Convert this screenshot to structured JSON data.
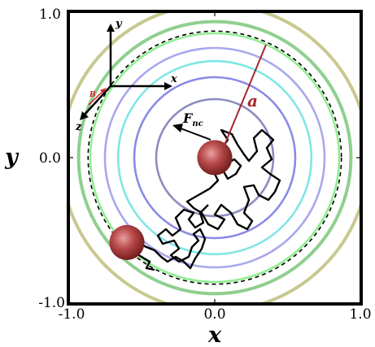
{
  "figure": {
    "axes": {
      "xlabel": "x",
      "ylabel": "y",
      "xlim": [
        -1.0,
        1.0
      ],
      "ylim": [
        -1.0,
        1.0
      ],
      "x_ticks": [
        "-1.0",
        "0.0",
        "1.0"
      ],
      "y_ticks": [
        "1.0",
        "0.0",
        "-1.0"
      ]
    },
    "rings": [
      {
        "radius": 0.4,
        "color": "#8c8cc0"
      },
      {
        "radius": 0.55,
        "color": "#8a8ae6"
      },
      {
        "radius": 0.66,
        "color": "#7fe6e6"
      },
      {
        "radius": 0.75,
        "color": "#a8a8ee"
      },
      {
        "radius": 0.85,
        "color": "#90ee90"
      },
      {
        "radius": 0.93,
        "color": "#8fcf8f"
      },
      {
        "radius": 1.05,
        "color": "#c8c890"
      }
    ],
    "boundary_radius": 0.865,
    "particles": [
      {
        "name": "center-sphere",
        "x": 0.0,
        "y": 0.0,
        "r": 0.12
      },
      {
        "name": "edge-sphere",
        "x": -0.6,
        "y": -0.58,
        "r": 0.12
      }
    ],
    "labels": {
      "radius": "a",
      "force_main": "F",
      "force_sub": "nc",
      "frame_x": "x",
      "frame_y": "y",
      "frame_z": "z",
      "field": "B"
    },
    "colors": {
      "radius_line": "#a5262a",
      "field_arrow": "#d8202a",
      "trajectory": "#000000"
    }
  }
}
